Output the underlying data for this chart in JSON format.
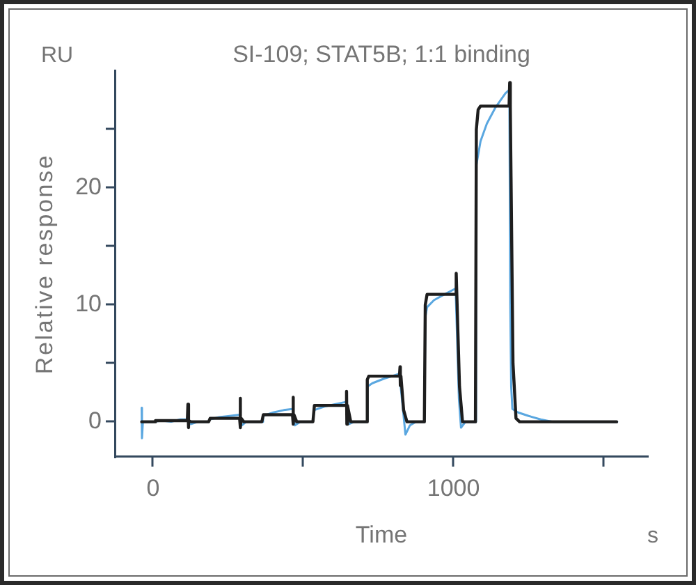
{
  "chart_data": {
    "type": "line",
    "title": "SI-109; STAT5B; 1:1 binding",
    "xlabel": "Time",
    "ylabel": "Relative response",
    "annotations": [
      "RU",
      "s"
    ],
    "xlim": [
      -125,
      1645
    ],
    "xticks": [
      0,
      {
        "value": 500,
        "label": null
      },
      1000,
      {
        "value": 1500,
        "label": null
      }
    ],
    "ylim": [
      -3,
      30
    ],
    "yticks": [
      0,
      {
        "value": 5,
        "label": null
      },
      10,
      {
        "value": 15,
        "label": null
      },
      20,
      {
        "value": 25,
        "label": null
      }
    ],
    "marker": "none",
    "line_style": "solid",
    "series": [
      {
        "color": "#5aa7e0",
        "x": [
          -38,
          -37,
          -34,
          0,
          30,
          60,
          90,
          114,
          125,
          150,
          185,
          188,
          220,
          255,
          288,
          296,
          310,
          362,
          366,
          400,
          435,
          464,
          472,
          490,
          532,
          536,
          570,
          605,
          642,
          652,
          670,
          710,
          713,
          730,
          770,
          820,
          832,
          840,
          855,
          875,
          903,
          906,
          912,
          935,
          970,
          1007,
          1018,
          1025,
          1040,
          1073,
          1075,
          1090,
          1111,
          1140,
          1173,
          1186,
          1189,
          1192,
          1196,
          1215,
          1250,
          1290,
          1330,
          1450,
          1545
        ],
        "values": [
          1.2,
          -1.4,
          0,
          0,
          0.1,
          0,
          0.2,
          0.2,
          -0.2,
          0,
          0,
          0.2,
          0.4,
          0.5,
          0.6,
          -0.3,
          0,
          0,
          0.5,
          0.8,
          1.0,
          1.1,
          -0.3,
          0,
          0,
          1.0,
          1.3,
          1.5,
          1.7,
          -0.2,
          0,
          0,
          3.0,
          3.3,
          3.7,
          4.1,
          1.0,
          -1.1,
          -0.3,
          0,
          0,
          8.9,
          9.8,
          10.4,
          10.9,
          11.4,
          2.0,
          -0.5,
          0,
          0,
          21.8,
          24.0,
          25.5,
          26.9,
          28.1,
          28.4,
          10.0,
          3.0,
          1.1,
          0.8,
          0.5,
          0.2,
          0,
          0,
          0
        ]
      },
      {
        "color": "#1e1e1e",
        "x": [
          -38,
          5,
          8,
          114,
          116,
          117,
          119,
          126,
          185,
          190,
          288,
          290,
          291,
          293,
          302,
          362,
          367,
          464,
          466,
          467,
          469,
          478,
          532,
          537,
          642,
          644,
          645,
          647,
          658,
          710,
          713,
          718,
          820,
          822,
          823,
          825,
          834,
          845,
          903,
          906,
          912,
          1007,
          1009,
          1011,
          1020,
          1030,
          1073,
          1076,
          1082,
          1090,
          1185,
          1187,
          1189,
          1198,
          1208,
          1220,
          1543
        ],
        "values": [
          0,
          0,
          0.1,
          0.1,
          1.5,
          -0.5,
          0.1,
          0,
          0,
          0.3,
          0.3,
          2.0,
          -0.5,
          0.3,
          0,
          0,
          0.6,
          0.6,
          2.1,
          -0.2,
          0.6,
          0,
          0,
          1.4,
          1.4,
          2.6,
          -0.2,
          1.4,
          0,
          0,
          3.6,
          3.9,
          3.9,
          4.7,
          3.1,
          3.9,
          1.0,
          0,
          0,
          10.0,
          10.9,
          10.9,
          12.7,
          10.9,
          3.0,
          0,
          0,
          25.0,
          26.7,
          27.0,
          27.0,
          29.0,
          27.0,
          5.0,
          0.3,
          0,
          0
        ]
      }
    ]
  }
}
